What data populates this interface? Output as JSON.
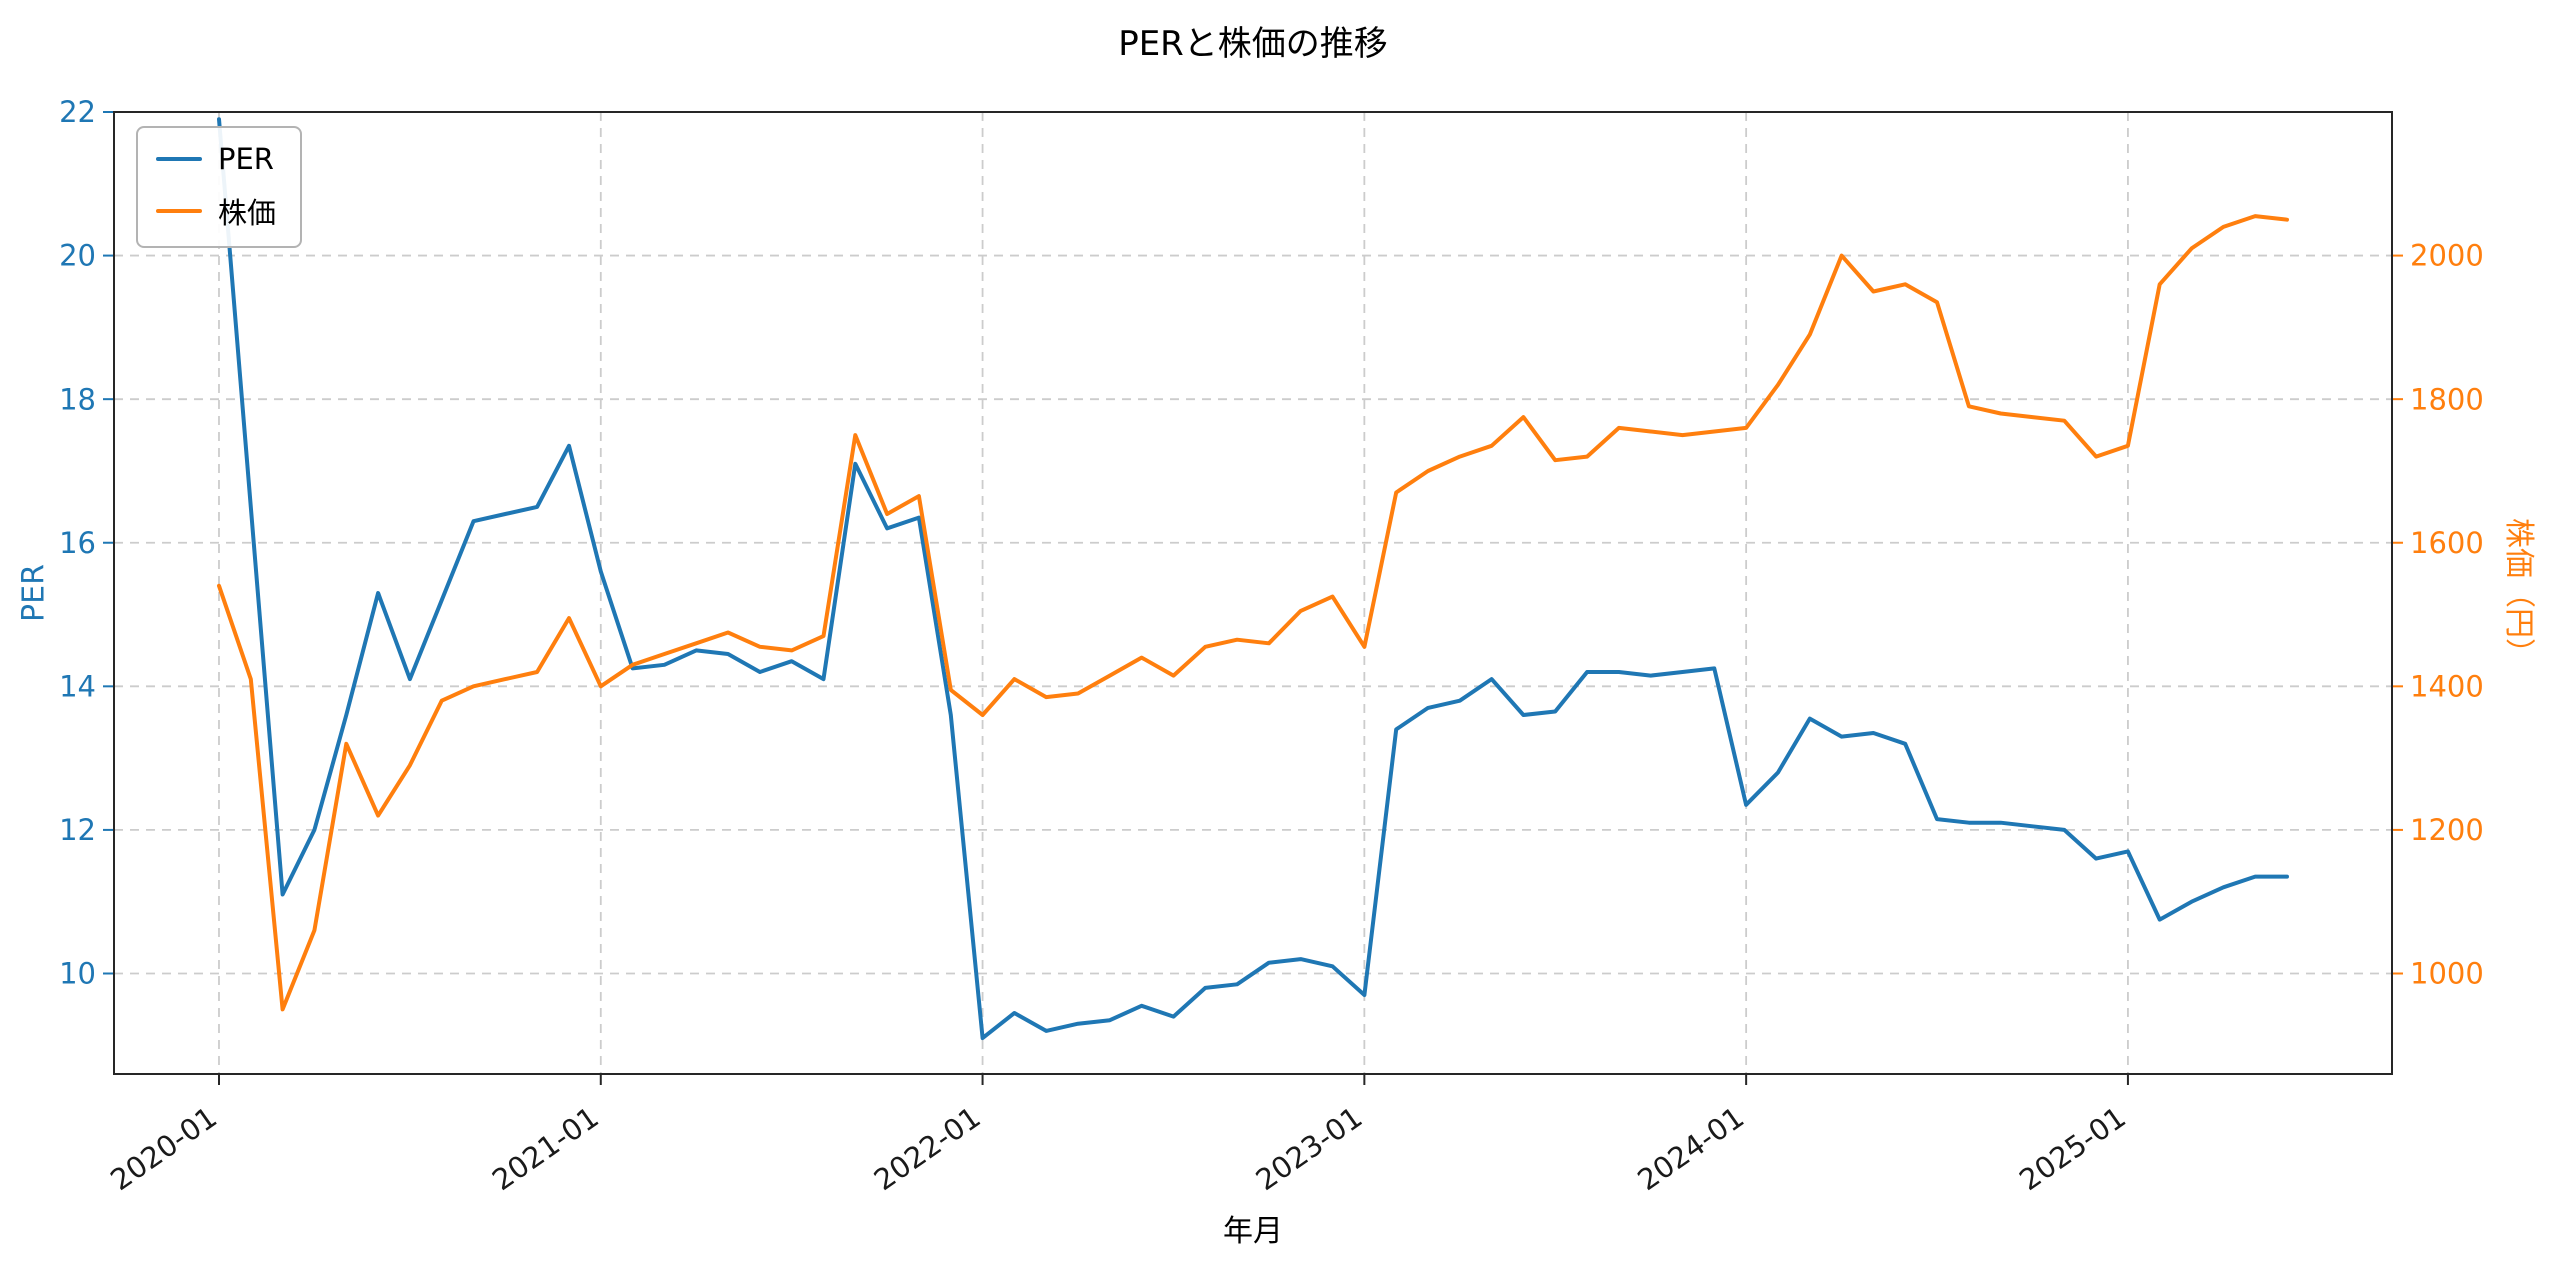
{
  "chart_data": {
    "type": "line",
    "title": "PERと株価の推移",
    "xlabel": "年月",
    "ylabel_left": "PER",
    "ylabel_right": "株価（円）",
    "grid": true,
    "legend_position": "upper left",
    "x": [
      "2020-01",
      "2020-02",
      "2020-03",
      "2020-04",
      "2020-05",
      "2020-06",
      "2020-07",
      "2020-08",
      "2020-09",
      "2020-10",
      "2020-11",
      "2020-12",
      "2021-01",
      "2021-02",
      "2021-03",
      "2021-04",
      "2021-05",
      "2021-06",
      "2021-07",
      "2021-08",
      "2021-09",
      "2021-10",
      "2021-11",
      "2021-12",
      "2022-01",
      "2022-02",
      "2022-03",
      "2022-04",
      "2022-05",
      "2022-06",
      "2022-07",
      "2022-08",
      "2022-09",
      "2022-10",
      "2022-11",
      "2022-12",
      "2023-01",
      "2023-02",
      "2023-03",
      "2023-04",
      "2023-05",
      "2023-06",
      "2023-07",
      "2023-08",
      "2023-09",
      "2023-10",
      "2023-11",
      "2023-12",
      "2024-01",
      "2024-02",
      "2024-03",
      "2024-04",
      "2024-05",
      "2024-06",
      "2024-07",
      "2024-08",
      "2024-09",
      "2024-10",
      "2024-11",
      "2024-12",
      "2025-01",
      "2025-02",
      "2025-03",
      "2025-04",
      "2025-05",
      "2025-06"
    ],
    "series": [
      {
        "name": "PER",
        "axis": "left",
        "color": "#1f77b4",
        "values": [
          21.9,
          16.5,
          11.1,
          12.0,
          13.6,
          15.3,
          14.1,
          15.2,
          16.3,
          16.4,
          16.5,
          17.35,
          15.6,
          14.25,
          14.3,
          14.5,
          14.45,
          14.2,
          14.35,
          14.1,
          17.1,
          16.2,
          16.35,
          13.6,
          9.1,
          9.45,
          9.2,
          9.3,
          9.35,
          9.55,
          9.4,
          9.8,
          9.85,
          10.15,
          10.2,
          10.1,
          9.7,
          13.4,
          13.7,
          13.8,
          14.1,
          13.6,
          13.65,
          14.2,
          14.2,
          14.15,
          14.2,
          14.25,
          12.35,
          12.8,
          13.55,
          13.3,
          13.35,
          13.2,
          12.15,
          12.1,
          12.1,
          12.05,
          12.0,
          11.6,
          11.7,
          10.75,
          11.0,
          11.2,
          11.35,
          11.35
        ]
      },
      {
        "name": "株価",
        "axis": "right",
        "color": "#ff7f0e",
        "values": [
          1540,
          1410,
          950,
          1060,
          1320,
          1220,
          1290,
          1380,
          1400,
          1410,
          1420,
          1495,
          1400,
          1430,
          1445,
          1460,
          1475,
          1455,
          1450,
          1470,
          1750,
          1640,
          1665,
          1395,
          1360,
          1410,
          1385,
          1390,
          1415,
          1440,
          1415,
          1455,
          1465,
          1460,
          1505,
          1525,
          1455,
          1670,
          1700,
          1720,
          1735,
          1775,
          1715,
          1720,
          1760,
          1755,
          1750,
          1755,
          1760,
          1820,
          1890,
          2000,
          1950,
          1960,
          1935,
          1790,
          1780,
          1775,
          1770,
          1720,
          1735,
          1960,
          2010,
          2040,
          2055,
          2050
        ]
      }
    ],
    "left_axis": {
      "label": "PER",
      "color": "#1f77b4",
      "ticks": [
        10,
        12,
        14,
        16,
        18,
        20,
        22
      ],
      "range": [
        8.6,
        22
      ]
    },
    "right_axis": {
      "label": "株価（円）",
      "color": "#ff7f0e",
      "ticks": [
        1000,
        1200,
        1400,
        1600,
        1800,
        2000
      ],
      "range": [
        860,
        2200
      ]
    },
    "x_axis": {
      "ticks": [
        "2020-01",
        "2021-01",
        "2022-01",
        "2023-01",
        "2024-01",
        "2025-01"
      ],
      "tick_color": "#1a1a1a",
      "rotation": -35,
      "view_range": [
        -3.3,
        68.3
      ]
    }
  }
}
